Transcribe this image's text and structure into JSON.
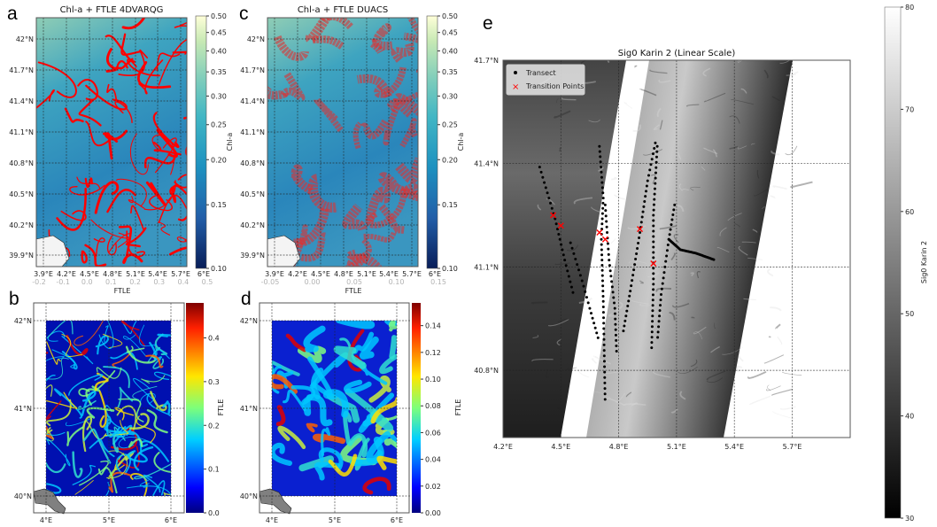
{
  "panels": {
    "a": {
      "letter": "a",
      "title": "Chl-a + FTLE 4DVARQG",
      "lat_ticks": [
        "42°N",
        "41.7°N",
        "41.4°N",
        "41.1°N",
        "40.8°N",
        "40.5°N",
        "40.2°N",
        "39.9°N"
      ],
      "lon_ticks": [
        "3.9°E",
        "4.2°E",
        "4.5°E",
        "4.8°E",
        "5.1°E",
        "5.4°E",
        "5.7°E",
        "6°E"
      ],
      "colorbar": {
        "label": "Chl-a",
        "scale": "log",
        "ticks": [
          "0.50",
          "0.45",
          "0.40",
          "0.35",
          "0.30",
          "0.25",
          "0.20",
          "0.15",
          "0.10"
        ],
        "colormap": "YlGnBu_r"
      },
      "hidden_axis": {
        "label": "FTLE",
        "ticks": [
          "-0.2",
          "-0.1",
          "0.0",
          "0.1",
          "0.2",
          "0.3",
          "0.4",
          "0.5"
        ]
      },
      "overlay_color": "#ff0000"
    },
    "c": {
      "letter": "c",
      "title": "Chl-a + FTLE DUACS",
      "lat_ticks": [
        "42°N",
        "41.7°N",
        "41.4°N",
        "41.1°N",
        "40.8°N",
        "40.5°N",
        "40.2°N",
        "39.9°N"
      ],
      "lon_ticks": [
        "3.9°E",
        "4.2°E",
        "4.5°E",
        "4.8°E",
        "5.1°E",
        "5.4°E",
        "5.7°E",
        "6°E"
      ],
      "colorbar": {
        "label": "Chl-a",
        "scale": "log",
        "ticks": [
          "0.50",
          "0.45",
          "0.40",
          "0.35",
          "0.30",
          "0.25",
          "0.20",
          "0.15",
          "0.10"
        ],
        "colormap": "YlGnBu_r"
      },
      "hidden_axis": {
        "label": "FTLE",
        "ticks": [
          "-0.05",
          "0.00",
          "0.05",
          "0.10",
          "0.15"
        ]
      },
      "overlay_color": "#e03030"
    },
    "b": {
      "letter": "b",
      "lat_ticks": [
        "42°N",
        "41°N",
        "40°N"
      ],
      "lon_ticks": [
        "4°E",
        "5°E",
        "6°E"
      ],
      "colorbar": {
        "label": "FTLE",
        "ticks": [
          "0.4",
          "0.3",
          "0.2",
          "0.1",
          "0.0"
        ],
        "range": [
          0,
          0.48
        ],
        "colormap": "jet"
      }
    },
    "d": {
      "letter": "d",
      "lat_ticks": [
        "42°N",
        "41°N",
        "40°N"
      ],
      "lon_ticks": [
        "4°E",
        "5°E",
        "6°E"
      ],
      "colorbar": {
        "label": "FTLE",
        "ticks": [
          "0.14",
          "0.12",
          "0.10",
          "0.08",
          "0.06",
          "0.04",
          "0.02",
          "0.00"
        ],
        "range": [
          0,
          0.157
        ],
        "colormap": "jet"
      }
    },
    "e": {
      "letter": "e",
      "title": "Sig0 Karin 2 (Linear Scale)",
      "lat_ticks": [
        "41.7°N",
        "41.4°N",
        "41.1°N",
        "40.8°N"
      ],
      "lon_ticks": [
        "4.2°E",
        "4.5°E",
        "4.8°E",
        "5.1°E",
        "5.4°E",
        "5.7°E"
      ],
      "legend": [
        {
          "label": "Transect",
          "marker": "dot",
          "color": "#000000"
        },
        {
          "label": "Transition Points",
          "marker": "x",
          "color": "#ff0000"
        }
      ],
      "colorbar": {
        "label": "Sig0 Karin 2",
        "ticks": [
          "80",
          "70",
          "60",
          "50",
          "40",
          "30"
        ],
        "range": [
          30,
          80
        ],
        "colormap": "gray"
      },
      "transition_points": [
        [
          4.46,
          41.25
        ],
        [
          4.5,
          41.22
        ],
        [
          4.7,
          41.2
        ],
        [
          4.73,
          41.18
        ],
        [
          4.91,
          41.21
        ],
        [
          4.98,
          41.11
        ]
      ],
      "transects": [
        [
          [
            4.39,
            41.39
          ],
          [
            4.47,
            41.24
          ],
          [
            4.52,
            41.12
          ],
          [
            4.57,
            41.01
          ]
        ],
        [
          [
            4.55,
            41.17
          ],
          [
            4.61,
            41.06
          ],
          [
            4.65,
            40.98
          ],
          [
            4.7,
            40.88
          ]
        ],
        [
          [
            4.7,
            41.45
          ],
          [
            4.72,
            41.3
          ],
          [
            4.71,
            41.18
          ],
          [
            4.72,
            41.0
          ],
          [
            4.73,
            40.7
          ]
        ],
        [
          [
            4.73,
            41.28
          ],
          [
            4.75,
            41.12
          ],
          [
            4.78,
            40.98
          ],
          [
            4.79,
            40.84
          ]
        ],
        [
          [
            4.99,
            41.46
          ],
          [
            4.95,
            41.35
          ],
          [
            4.91,
            41.2
          ],
          [
            4.86,
            41.03
          ],
          [
            4.82,
            40.9
          ]
        ],
        [
          [
            5.0,
            41.45
          ],
          [
            4.98,
            41.25
          ],
          [
            4.98,
            41.05
          ],
          [
            4.97,
            40.85
          ]
        ],
        [
          [
            5.09,
            41.28
          ],
          [
            5.06,
            41.18
          ],
          [
            5.02,
            41.02
          ],
          [
            5.0,
            40.88
          ]
        ],
        [
          [
            5.06,
            41.18
          ],
          [
            5.12,
            41.15
          ],
          [
            5.2,
            41.14
          ],
          [
            5.3,
            41.12
          ]
        ]
      ]
    }
  }
}
